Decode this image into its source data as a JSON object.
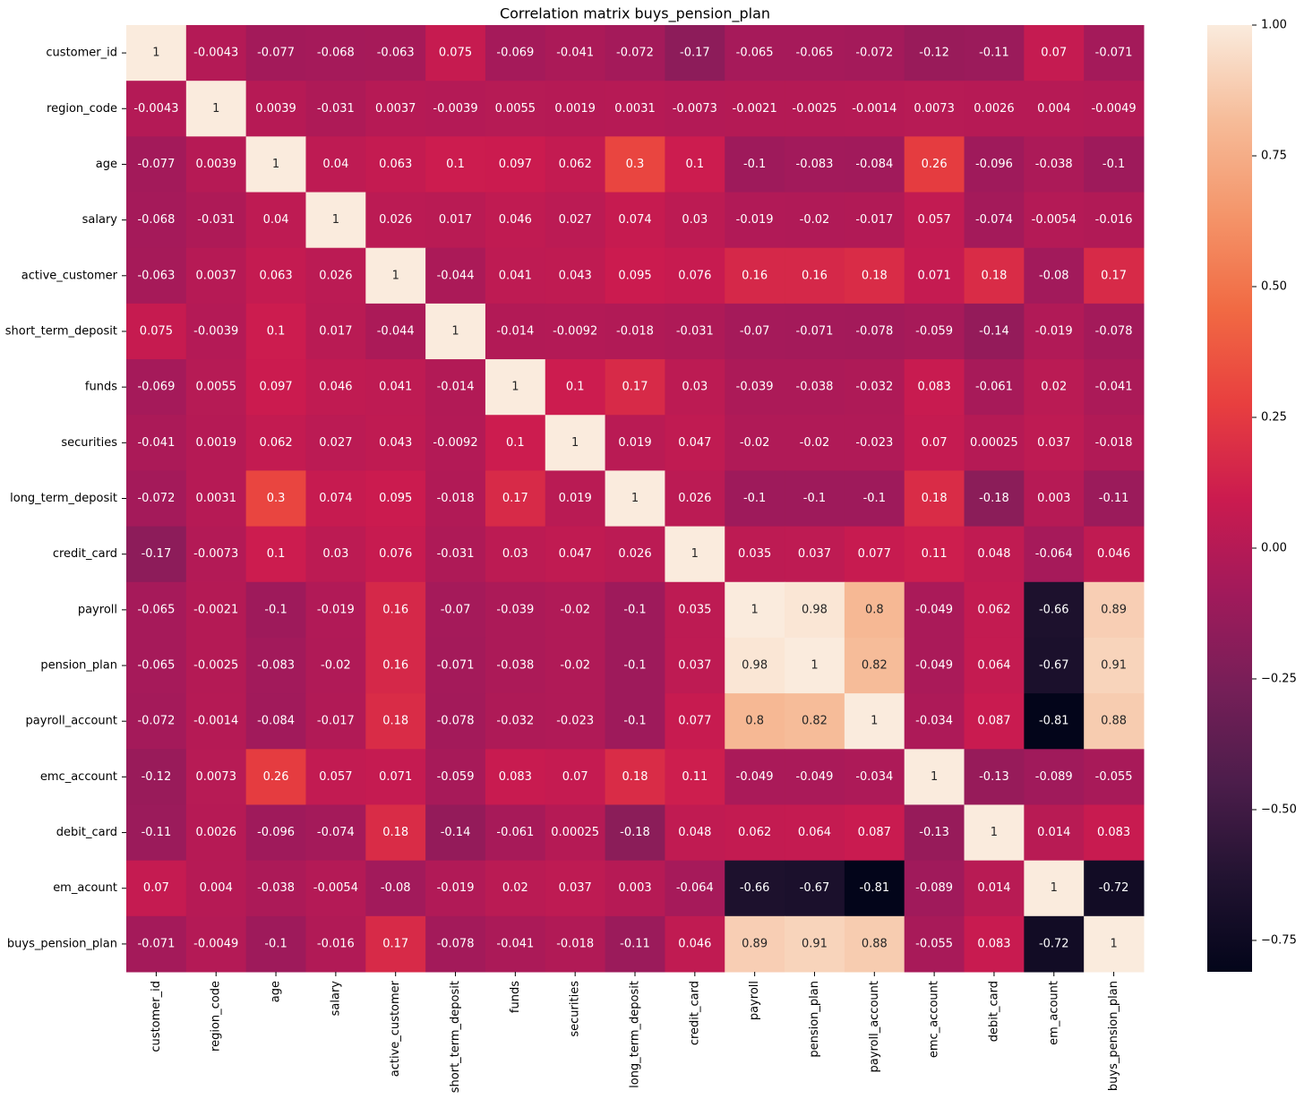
{
  "chart_data": {
    "type": "heatmap",
    "title": "Correlation matrix buys_pension_plan",
    "categories": [
      "customer_id",
      "region_code",
      "age",
      "salary",
      "active_customer",
      "short_term_deposit",
      "funds",
      "securities",
      "long_term_deposit",
      "credit_card",
      "payroll",
      "pension_plan",
      "payroll_account",
      "emc_account",
      "debit_card",
      "em_acount",
      "buys_pension_plan"
    ],
    "values": [
      [
        1,
        -0.0043,
        -0.077,
        -0.068,
        -0.063,
        0.075,
        -0.069,
        -0.041,
        -0.072,
        -0.17,
        -0.065,
        -0.065,
        -0.072,
        -0.12,
        -0.11,
        0.07,
        -0.071
      ],
      [
        -0.0043,
        1,
        0.0039,
        -0.031,
        0.0037,
        -0.0039,
        0.0055,
        0.0019,
        0.0031,
        -0.0073,
        -0.0021,
        -0.0025,
        -0.0014,
        0.0073,
        0.0026,
        0.004,
        -0.0049
      ],
      [
        -0.077,
        0.0039,
        1,
        0.04,
        0.063,
        0.1,
        0.097,
        0.062,
        0.3,
        0.1,
        -0.1,
        -0.083,
        -0.084,
        0.26,
        -0.096,
        -0.038,
        -0.1
      ],
      [
        -0.068,
        -0.031,
        0.04,
        1,
        0.026,
        0.017,
        0.046,
        0.027,
        0.074,
        0.03,
        -0.019,
        -0.02,
        -0.017,
        0.057,
        -0.074,
        -0.0054,
        -0.016
      ],
      [
        -0.063,
        0.0037,
        0.063,
        0.026,
        1,
        -0.044,
        0.041,
        0.043,
        0.095,
        0.076,
        0.16,
        0.16,
        0.18,
        0.071,
        0.18,
        -0.08,
        0.17
      ],
      [
        0.075,
        -0.0039,
        0.1,
        0.017,
        -0.044,
        1,
        -0.014,
        -0.0092,
        -0.018,
        -0.031,
        -0.07,
        -0.071,
        -0.078,
        -0.059,
        -0.14,
        -0.019,
        -0.078
      ],
      [
        -0.069,
        0.0055,
        0.097,
        0.046,
        0.041,
        -0.014,
        1,
        0.1,
        0.17,
        0.03,
        -0.039,
        -0.038,
        -0.032,
        0.083,
        -0.061,
        0.02,
        -0.041
      ],
      [
        -0.041,
        0.0019,
        0.062,
        0.027,
        0.043,
        -0.0092,
        0.1,
        1,
        0.019,
        0.047,
        -0.02,
        -0.02,
        -0.023,
        0.07,
        0.00025,
        0.037,
        -0.018
      ],
      [
        -0.072,
        0.0031,
        0.3,
        0.074,
        0.095,
        -0.018,
        0.17,
        0.019,
        1,
        0.026,
        -0.1,
        -0.1,
        -0.1,
        0.18,
        -0.18,
        0.003,
        -0.11
      ],
      [
        -0.17,
        -0.0073,
        0.1,
        0.03,
        0.076,
        -0.031,
        0.03,
        0.047,
        0.026,
        1,
        0.035,
        0.037,
        0.077,
        0.11,
        0.048,
        -0.064,
        0.046
      ],
      [
        -0.065,
        -0.0021,
        -0.1,
        -0.019,
        0.16,
        -0.07,
        -0.039,
        -0.02,
        -0.1,
        0.035,
        1,
        0.98,
        0.8,
        -0.049,
        0.062,
        -0.66,
        0.89
      ],
      [
        -0.065,
        -0.0025,
        -0.083,
        -0.02,
        0.16,
        -0.071,
        -0.038,
        -0.02,
        -0.1,
        0.037,
        0.98,
        1,
        0.82,
        -0.049,
        0.064,
        -0.67,
        0.91
      ],
      [
        -0.072,
        -0.0014,
        -0.084,
        -0.017,
        0.18,
        -0.078,
        -0.032,
        -0.023,
        -0.1,
        0.077,
        0.8,
        0.82,
        1,
        -0.034,
        0.087,
        -0.81,
        0.88
      ],
      [
        -0.12,
        0.0073,
        0.26,
        0.057,
        0.071,
        -0.059,
        0.083,
        0.07,
        0.18,
        0.11,
        -0.049,
        -0.049,
        -0.034,
        1,
        -0.13,
        -0.089,
        -0.055
      ],
      [
        -0.11,
        0.0026,
        -0.096,
        -0.074,
        0.18,
        -0.14,
        -0.061,
        0.00025,
        -0.18,
        0.048,
        0.062,
        0.064,
        0.087,
        -0.13,
        1,
        0.014,
        0.083
      ],
      [
        0.07,
        0.004,
        -0.038,
        -0.0054,
        -0.08,
        -0.019,
        0.02,
        0.037,
        0.003,
        -0.064,
        -0.66,
        -0.67,
        -0.81,
        -0.089,
        0.014,
        1,
        -0.72
      ],
      [
        -0.071,
        -0.0049,
        -0.1,
        -0.016,
        0.17,
        -0.078,
        -0.041,
        -0.018,
        -0.11,
        0.046,
        0.89,
        0.91,
        0.88,
        -0.055,
        0.083,
        -0.72,
        1
      ]
    ],
    "colormap": "rocket",
    "clim": [
      -0.81,
      1
    ],
    "cticks": [
      {
        "value": -0.75,
        "label": "−0.75"
      },
      {
        "value": -0.5,
        "label": "−0.50"
      },
      {
        "value": -0.25,
        "label": "−0.25"
      },
      {
        "value": 0,
        "label": "0.00"
      },
      {
        "value": 0.25,
        "label": "0.25"
      },
      {
        "value": 0.5,
        "label": "0.50"
      },
      {
        "value": 0.75,
        "label": "0.75"
      },
      {
        "value": 1,
        "label": "1.00"
      }
    ]
  }
}
